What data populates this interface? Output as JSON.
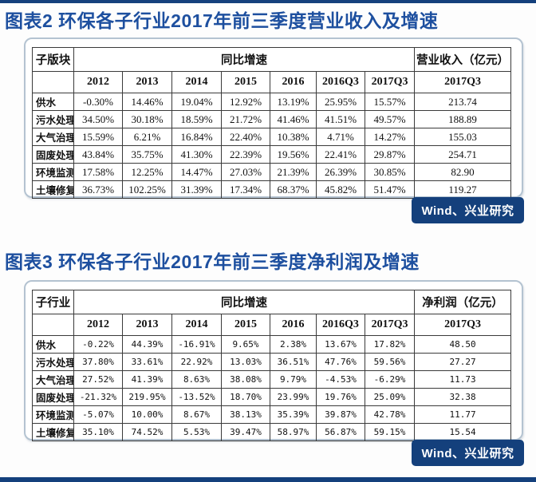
{
  "colors": {
    "title_blue": "#1d4f9f",
    "badge_navy": "#14407c",
    "panel_border": "#b4c3d1",
    "grid_line": "#3a3a3a",
    "highlight_box": "#000000"
  },
  "tables": [
    {
      "title": "图表2 环保各子行业2017年前三季度营业收入及增速",
      "corner_header": "子版块",
      "growth_header": "同比增速",
      "amount_header": "营业收入（亿元）",
      "period_headers": [
        "2012",
        "2013",
        "2014",
        "2015",
        "2016",
        "2016Q3",
        "2017Q3"
      ],
      "amount_period_header": "2017Q3",
      "highlighted_periods": [
        "2016Q3",
        "2017Q3"
      ],
      "rows": [
        {
          "label": "供水",
          "growth": [
            "-0.30%",
            "14.46%",
            "19.04%",
            "12.92%",
            "13.19%",
            "25.95%",
            "15.57%"
          ],
          "amount": "213.74"
        },
        {
          "label": "污水处理",
          "growth": [
            "34.50%",
            "30.18%",
            "18.59%",
            "21.72%",
            "41.46%",
            "41.51%",
            "49.57%"
          ],
          "amount": "188.89"
        },
        {
          "label": "大气治理",
          "growth": [
            "15.59%",
            "6.21%",
            "16.84%",
            "22.40%",
            "10.38%",
            "4.71%",
            "14.27%"
          ],
          "amount": "155.03"
        },
        {
          "label": "固废处理",
          "growth": [
            "43.84%",
            "35.75%",
            "41.30%",
            "22.39%",
            "19.56%",
            "22.41%",
            "29.87%"
          ],
          "amount": "254.71"
        },
        {
          "label": "环境监测",
          "growth": [
            "17.58%",
            "12.25%",
            "14.47%",
            "27.03%",
            "21.39%",
            "26.39%",
            "30.85%"
          ],
          "amount": "82.90"
        },
        {
          "label": "土壤修复",
          "growth": [
            "36.73%",
            "102.25%",
            "31.39%",
            "17.34%",
            "68.37%",
            "45.82%",
            "51.47%"
          ],
          "amount": "119.27"
        }
      ],
      "source": "Wind、兴业研究"
    },
    {
      "title": "图表3 环保各子行业2017年前三季度净利润及增速",
      "corner_header": "子行业",
      "growth_header": "同比增速",
      "amount_header": "净利润（亿元）",
      "period_headers": [
        "2012",
        "2013",
        "2014",
        "2015",
        "2016",
        "2016Q3",
        "2017Q3"
      ],
      "amount_period_header": "2017Q3",
      "highlighted_periods": [
        "2016Q3",
        "2017Q3"
      ],
      "rows": [
        {
          "label": "供水",
          "growth": [
            "-0.22%",
            "44.39%",
            "-16.91%",
            "9.65%",
            "2.38%",
            "13.67%",
            "17.82%"
          ],
          "amount": "48.50"
        },
        {
          "label": "污水处理",
          "growth": [
            "37.80%",
            "33.61%",
            "22.92%",
            "13.03%",
            "36.51%",
            "47.76%",
            "59.56%"
          ],
          "amount": "27.27"
        },
        {
          "label": "大气治理",
          "growth": [
            "27.52%",
            "41.39%",
            "8.63%",
            "38.08%",
            "9.79%",
            "-4.53%",
            "-6.29%"
          ],
          "amount": "11.73"
        },
        {
          "label": "固废处理",
          "growth": [
            "-21.32%",
            "219.95%",
            "-13.52%",
            "18.70%",
            "23.99%",
            "19.76%",
            "25.09%"
          ],
          "amount": "32.38"
        },
        {
          "label": "环境监测",
          "growth": [
            "-5.07%",
            "10.00%",
            "8.67%",
            "38.13%",
            "35.39%",
            "39.87%",
            "42.78%"
          ],
          "amount": "11.77"
        },
        {
          "label": "土壤修复",
          "growth": [
            "35.10%",
            "74.52%",
            "5.53%",
            "39.47%",
            "58.97%",
            "56.87%",
            "59.15%"
          ],
          "amount": "15.54"
        }
      ],
      "source": "Wind、兴业研究"
    }
  ]
}
